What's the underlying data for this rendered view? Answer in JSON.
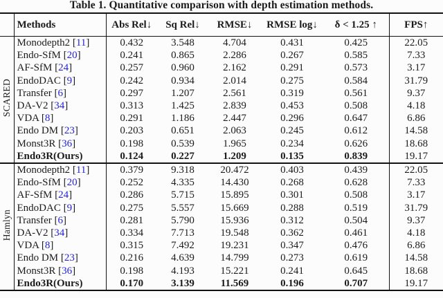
{
  "title": "Table 1. Quantitative comparison with depth estimation methods.",
  "columns": [
    "Methods",
    "Abs Rel↓",
    "Sq Rel↓",
    "RMSE↓",
    "RMSE log↓",
    "δ < 1.25 ↑",
    "FPS↑"
  ],
  "colors": {
    "citation_link": "#2222dd",
    "text": "#1b1b1b",
    "rule": "#111111",
    "background": "#fcfcfc"
  },
  "groups": [
    {
      "label": "SCARED",
      "rows": [
        {
          "method": "Monodepth2",
          "cite": "11",
          "values": [
            "0.432",
            "3.548",
            "4.704",
            "0.431",
            "0.425"
          ],
          "fps": "22.05",
          "bold": false
        },
        {
          "method": "Endo-SfM",
          "cite": "20",
          "values": [
            "0.241",
            "0.865",
            "2.286",
            "0.267",
            "0.585"
          ],
          "fps": "7.33",
          "bold": false
        },
        {
          "method": "AF-SfM",
          "cite": "24",
          "values": [
            "0.257",
            "0.960",
            "2.162",
            "0.291",
            "0.573"
          ],
          "fps": "3.17",
          "bold": false
        },
        {
          "method": "EndoDAC",
          "cite": "9",
          "values": [
            "0.242",
            "0.934",
            "2.014",
            "0.275",
            "0.584"
          ],
          "fps": "31.79",
          "bold": false
        },
        {
          "method": "Transfer",
          "cite": "6",
          "values": [
            "0.297",
            "1.207",
            "2.561",
            "0.319",
            "0.561"
          ],
          "fps": "9.37",
          "bold": false
        },
        {
          "method": "DA-V2",
          "cite": "34",
          "values": [
            "0.313",
            "1.425",
            "2.839",
            "0.453",
            "0.508"
          ],
          "fps": "4.18",
          "bold": false
        },
        {
          "method": "VDA",
          "cite": "8",
          "values": [
            "0.291",
            "1.186",
            "2.447",
            "0.296",
            "0.647"
          ],
          "fps": "6.86",
          "bold": false
        },
        {
          "method": "Endo DM",
          "cite": "23",
          "values": [
            "0.203",
            "0.651",
            "2.063",
            "0.245",
            "0.612"
          ],
          "fps": "14.58",
          "bold": false
        },
        {
          "method": "Monst3R",
          "cite": "36",
          "values": [
            "0.198",
            "0.539",
            "1.965",
            "0.234",
            "0.626"
          ],
          "fps": "18.68",
          "bold": false
        },
        {
          "method": "Endo3R(Ours)",
          "cite": null,
          "values": [
            "0.124",
            "0.227",
            "1.209",
            "0.135",
            "0.839"
          ],
          "fps": "19.17",
          "bold": true
        }
      ]
    },
    {
      "label": "Hamlyn",
      "rows": [
        {
          "method": "Monodepth2",
          "cite": "11",
          "values": [
            "0.379",
            "9.318",
            "20.472",
            "0.403",
            "0.439"
          ],
          "fps": "22.05",
          "bold": false
        },
        {
          "method": "Endo-SfM",
          "cite": "20",
          "values": [
            "0.252",
            "4.335",
            "14.430",
            "0.268",
            "0.628"
          ],
          "fps": "7.33",
          "bold": false
        },
        {
          "method": "AF-SfM",
          "cite": "24",
          "values": [
            "0.286",
            "5.715",
            "15.895",
            "0.301",
            "0.508"
          ],
          "fps": "3.17",
          "bold": false
        },
        {
          "method": "EndoDAC",
          "cite": "9",
          "values": [
            "0.275",
            "5.557",
            "15.669",
            "0.288",
            "0.519"
          ],
          "fps": "31.79",
          "bold": false
        },
        {
          "method": "Transfer",
          "cite": "6",
          "values": [
            "0.281",
            "5.790",
            "15.936",
            "0.312",
            "0.504"
          ],
          "fps": "9.37",
          "bold": false
        },
        {
          "method": "DA-V2",
          "cite": "34",
          "values": [
            "0.334",
            "7.713",
            "19.548",
            "0.362",
            "0.461"
          ],
          "fps": "4.18",
          "bold": false
        },
        {
          "method": "VDA",
          "cite": "8",
          "values": [
            "0.315",
            "7.492",
            "19.231",
            "0.347",
            "0.476"
          ],
          "fps": "6.86",
          "bold": false
        },
        {
          "method": "Endo DM",
          "cite": "23",
          "values": [
            "0.216",
            "4.639",
            "14.799",
            "0.273",
            "0.619"
          ],
          "fps": "14.58",
          "bold": false
        },
        {
          "method": "Monst3R",
          "cite": "36",
          "values": [
            "0.198",
            "4.193",
            "15.221",
            "0.241",
            "0.645"
          ],
          "fps": "18.68",
          "bold": false
        },
        {
          "method": "Endo3R(Ours)",
          "cite": null,
          "values": [
            "0.170",
            "3.139",
            "11.569",
            "0.196",
            "0.707"
          ],
          "fps": "19.17",
          "bold": true
        }
      ]
    }
  ]
}
